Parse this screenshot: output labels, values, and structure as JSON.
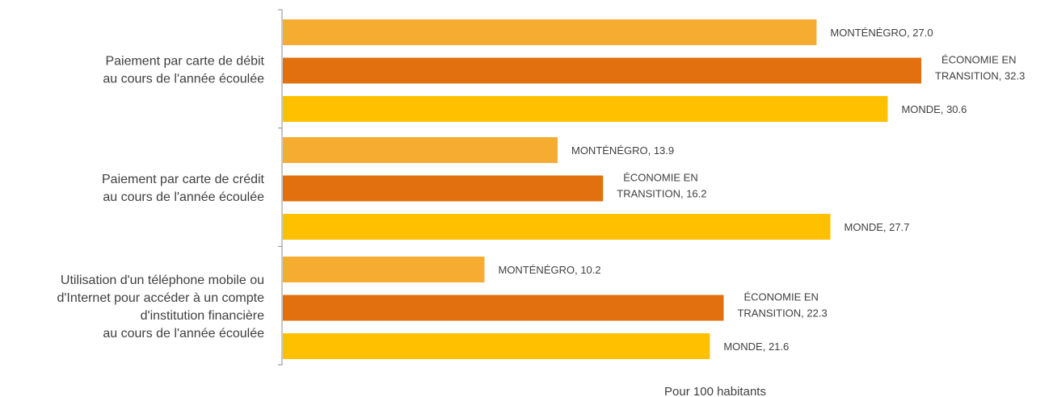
{
  "chart_data": {
    "type": "bar",
    "orientation": "horizontal",
    "xlabel": "Pour 100  habitants",
    "xlim": [
      0,
      35
    ],
    "grid": false,
    "categories": [
      {
        "lines": [
          "Paiement par carte de débit",
          "au cours de l'année écoulée"
        ],
        "bars": [
          {
            "series": "MONTÉNÉGRO",
            "value": 27.0,
            "label_lines": [
              "MONTÉNÉGRO, 27.0"
            ]
          },
          {
            "series": "ÉCONOMIE EN TRANSITION",
            "value": 32.3,
            "label_lines": [
              "ÉCONOMIE  EN",
              "TRANSITION, 32.3"
            ]
          },
          {
            "series": "MONDE",
            "value": 30.6,
            "label_lines": [
              "MONDE, 30.6"
            ]
          }
        ]
      },
      {
        "lines": [
          "Paiement par carte de crédit",
          "au cours de l'année écoulée"
        ],
        "bars": [
          {
            "series": "MONTÉNÉGRO",
            "value": 13.9,
            "label_lines": [
              "MONTÉNÉGRO, 13.9"
            ]
          },
          {
            "series": "ÉCONOMIE EN TRANSITION",
            "value": 16.2,
            "label_lines": [
              "ÉCONOMIE  EN",
              "TRANSITION, 16.2"
            ]
          },
          {
            "series": "MONDE",
            "value": 27.7,
            "label_lines": [
              "MONDE, 27.7"
            ]
          }
        ]
      },
      {
        "lines": [
          "Utilisation d'un téléphone mobile ou",
          "d'Internet pour accéder à un compte",
          "d'institution financière",
          "au cours de l'année écoulée"
        ],
        "bars": [
          {
            "series": "MONTÉNÉGRO",
            "value": 10.2,
            "label_lines": [
              "MONTÉNÉGRO, 10.2"
            ]
          },
          {
            "series": "ÉCONOMIE EN TRANSITION",
            "value": 22.3,
            "label_lines": [
              "ÉCONOMIE  EN",
              "TRANSITION, 22.3"
            ]
          },
          {
            "series": "MONDE",
            "value": 21.6,
            "label_lines": [
              "MONDE, 21.6"
            ]
          }
        ]
      }
    ],
    "colors": {
      "MONTÉNÉGRO": "#F5AC30",
      "ÉCONOMIE EN TRANSITION": "#E2700F",
      "MONDE": "#FFC000"
    }
  }
}
